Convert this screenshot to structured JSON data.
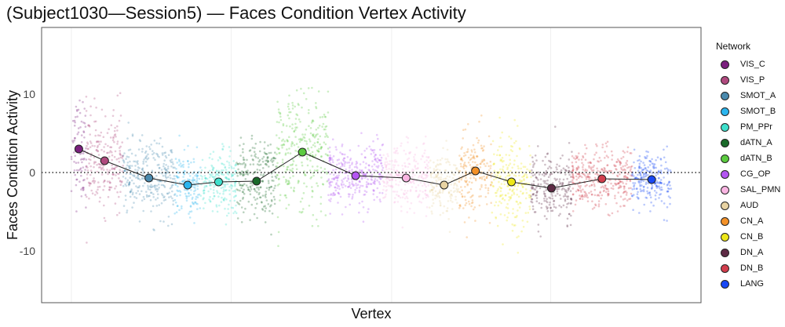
{
  "chart_data": {
    "type": "scatter",
    "title": "(Subject1030—Session5) — Faces Condition Vertex Activity",
    "xlabel": "Vertex",
    "ylabel": "Faces Condition Activity",
    "ylim": [
      -16.6,
      18.5
    ],
    "xlim": [
      -38,
      804
    ],
    "yticks": [
      -10,
      0,
      10
    ],
    "reference_line_y": 0,
    "legend_title": "Network",
    "legend_position": "right",
    "networks": [
      {
        "name": "VIS_C",
        "color": "#7B1F7E",
        "x_range": [
          0,
          19
        ],
        "mean": 3.0,
        "sd": 3.3
      },
      {
        "name": "VIS_P",
        "color": "#B04A7F",
        "x_range": [
          19,
          66
        ],
        "mean": 1.5,
        "sd": 3.0
      },
      {
        "name": "SMOT_A",
        "color": "#4A8AAE",
        "x_range": [
          66,
          132
        ],
        "mean": -0.7,
        "sd": 2.3
      },
      {
        "name": "SMOT_B",
        "color": "#2BB5EE",
        "x_range": [
          132,
          165
        ],
        "mean": -1.6,
        "sd": 2.0
      },
      {
        "name": "PM_PPr",
        "color": "#3EE0CC",
        "x_range": [
          165,
          211
        ],
        "mean": -1.2,
        "sd": 1.9
      },
      {
        "name": "dATN_A",
        "color": "#1A6B2A",
        "x_range": [
          211,
          262
        ],
        "mean": -1.1,
        "sd": 2.6
      },
      {
        "name": "dATN_B",
        "color": "#5BCB3F",
        "x_range": [
          262,
          328
        ],
        "mean": 2.6,
        "sd": 3.6
      },
      {
        "name": "CG_OP",
        "color": "#B455F2",
        "x_range": [
          328,
          398
        ],
        "mean": -0.4,
        "sd": 2.0
      },
      {
        "name": "SAL_PMN",
        "color": "#F9B5E2",
        "x_range": [
          398,
          457
        ],
        "mean": -0.7,
        "sd": 2.1
      },
      {
        "name": "AUD",
        "color": "#E8D3A3",
        "x_range": [
          457,
          495
        ],
        "mean": -1.6,
        "sd": 1.8
      },
      {
        "name": "CN_A",
        "color": "#F39128",
        "x_range": [
          495,
          537
        ],
        "mean": 0.2,
        "sd": 2.5
      },
      {
        "name": "CN_B",
        "color": "#EDE71A",
        "x_range": [
          537,
          587
        ],
        "mean": -1.2,
        "sd": 3.0
      },
      {
        "name": "DN_A",
        "color": "#5E2B45",
        "x_range": [
          587,
          639
        ],
        "mean": -2.0,
        "sd": 2.2
      },
      {
        "name": "DN_B",
        "color": "#D23E4D",
        "x_range": [
          639,
          716
        ],
        "mean": -0.8,
        "sd": 1.9
      },
      {
        "name": "LANG",
        "color": "#1848F5",
        "x_range": [
          716,
          766
        ],
        "mean": -0.9,
        "sd": 1.7
      }
    ]
  }
}
